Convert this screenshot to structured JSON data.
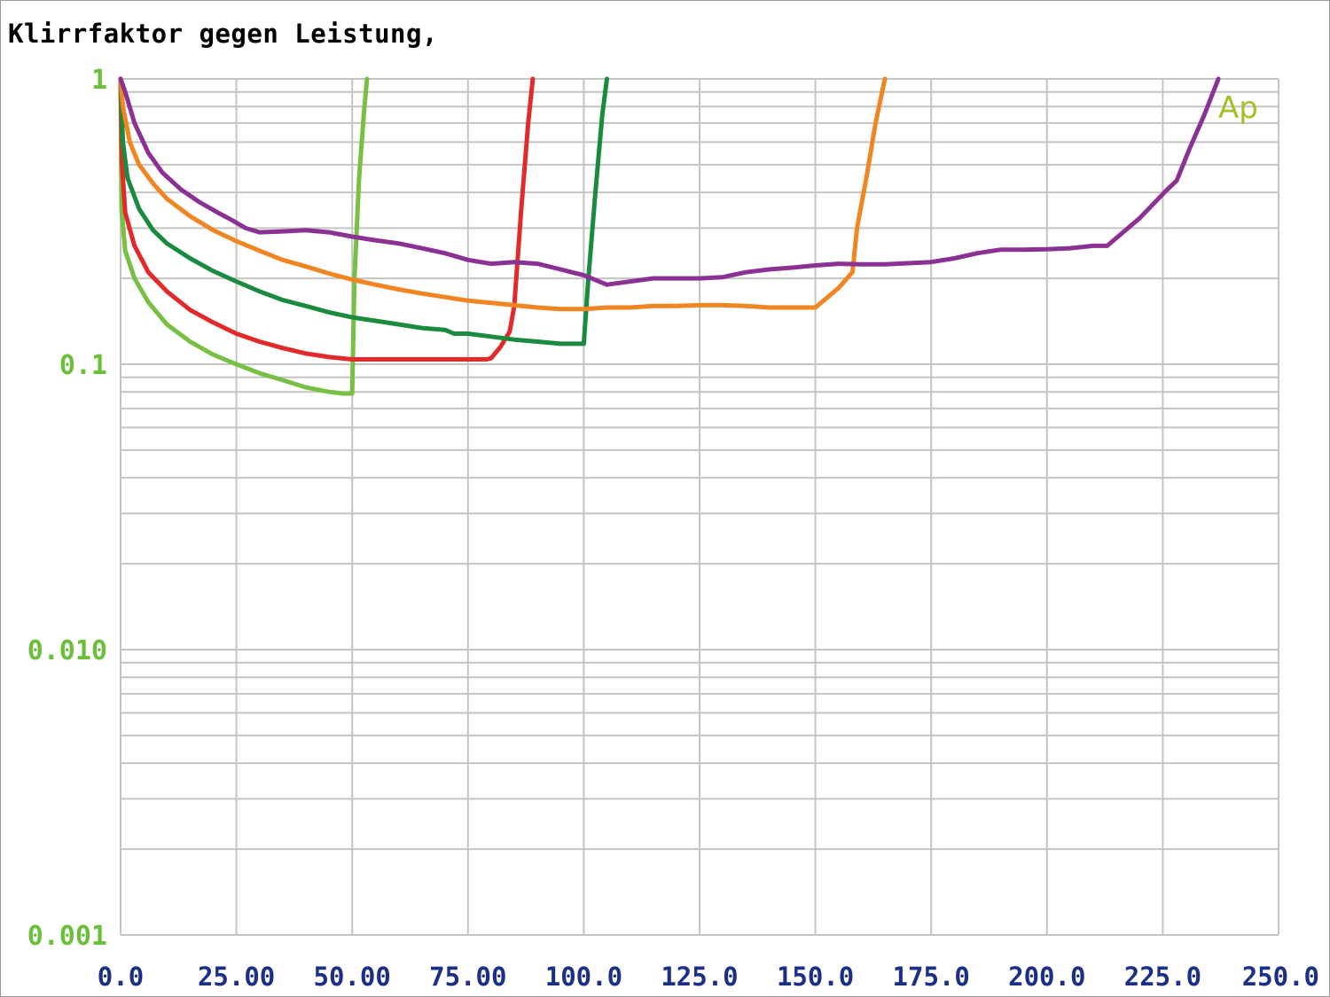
{
  "chart_data": {
    "type": "line",
    "title": "Klirrfaktor gegen Leistung,",
    "logo_text": "Ap",
    "xlabel": "",
    "ylabel": "",
    "xlim": [
      0,
      250
    ],
    "ylim": [
      0.001,
      1
    ],
    "y_scale": "log",
    "grid": true,
    "x_ticks": [
      "0.0",
      "25.00",
      "50.00",
      "75.00",
      "100.0",
      "125.0",
      "150.0",
      "175.0",
      "200.0",
      "225.0",
      "250.0"
    ],
    "y_ticks": [
      {
        "value": 1,
        "label": "1"
      },
      {
        "value": 0.1,
        "label": "0.1"
      },
      {
        "value": 0.01,
        "label": "0.010"
      },
      {
        "value": 0.001,
        "label": "0.001"
      }
    ],
    "colors": {
      "grid": "#c4c4c4",
      "ytick": "#6cbf3a",
      "xtick": "#1c2f87"
    },
    "series": [
      {
        "color": "#77c043",
        "points": [
          [
            0,
            1
          ],
          [
            0.2,
            0.35
          ],
          [
            1,
            0.25
          ],
          [
            3,
            0.2
          ],
          [
            6,
            0.165
          ],
          [
            10,
            0.138
          ],
          [
            15,
            0.12
          ],
          [
            20,
            0.108
          ],
          [
            25,
            0.1
          ],
          [
            30,
            0.093
          ],
          [
            35,
            0.088
          ],
          [
            40,
            0.083
          ],
          [
            45,
            0.08
          ],
          [
            48,
            0.079
          ],
          [
            50,
            0.079
          ],
          [
            50.5,
            0.2
          ],
          [
            51.5,
            0.45
          ],
          [
            52.5,
            0.75
          ],
          [
            53.2,
            1
          ]
        ]
      },
      {
        "color": "#e32a2a",
        "points": [
          [
            0,
            1
          ],
          [
            0.3,
            0.5
          ],
          [
            1,
            0.34
          ],
          [
            3,
            0.26
          ],
          [
            6,
            0.21
          ],
          [
            10,
            0.18
          ],
          [
            15,
            0.155
          ],
          [
            20,
            0.14
          ],
          [
            25,
            0.128
          ],
          [
            30,
            0.12
          ],
          [
            35,
            0.114
          ],
          [
            40,
            0.109
          ],
          [
            45,
            0.106
          ],
          [
            50,
            0.104
          ],
          [
            60,
            0.104
          ],
          [
            70,
            0.104
          ],
          [
            79,
            0.104
          ],
          [
            80,
            0.105
          ],
          [
            82,
            0.115
          ],
          [
            84,
            0.13
          ],
          [
            85,
            0.16
          ],
          [
            86.5,
            0.35
          ],
          [
            88,
            0.7
          ],
          [
            89,
            1
          ]
        ]
      },
      {
        "color": "#1a8a3e",
        "points": [
          [
            0,
            1
          ],
          [
            0.5,
            0.6
          ],
          [
            1.5,
            0.45
          ],
          [
            4,
            0.35
          ],
          [
            7,
            0.295
          ],
          [
            10,
            0.265
          ],
          [
            15,
            0.235
          ],
          [
            20,
            0.212
          ],
          [
            25,
            0.195
          ],
          [
            30,
            0.18
          ],
          [
            35,
            0.168
          ],
          [
            40,
            0.16
          ],
          [
            45,
            0.152
          ],
          [
            50,
            0.146
          ],
          [
            55,
            0.142
          ],
          [
            60,
            0.138
          ],
          [
            65,
            0.134
          ],
          [
            70,
            0.132
          ],
          [
            72,
            0.128
          ],
          [
            75,
            0.128
          ],
          [
            80,
            0.125
          ],
          [
            85,
            0.122
          ],
          [
            90,
            0.12
          ],
          [
            95,
            0.118
          ],
          [
            100,
            0.118
          ],
          [
            101,
            0.2
          ],
          [
            102.5,
            0.4
          ],
          [
            104,
            0.75
          ],
          [
            105,
            1
          ]
        ]
      },
      {
        "color": "#f08522",
        "points": [
          [
            0,
            1
          ],
          [
            0.5,
            0.8
          ],
          [
            2,
            0.6
          ],
          [
            4,
            0.5
          ],
          [
            7,
            0.43
          ],
          [
            10,
            0.38
          ],
          [
            15,
            0.33
          ],
          [
            20,
            0.295
          ],
          [
            25,
            0.27
          ],
          [
            30,
            0.25
          ],
          [
            35,
            0.232
          ],
          [
            40,
            0.22
          ],
          [
            45,
            0.208
          ],
          [
            50,
            0.198
          ],
          [
            55,
            0.19
          ],
          [
            60,
            0.183
          ],
          [
            65,
            0.177
          ],
          [
            70,
            0.172
          ],
          [
            75,
            0.167
          ],
          [
            80,
            0.164
          ],
          [
            85,
            0.161
          ],
          [
            90,
            0.158
          ],
          [
            95,
            0.156
          ],
          [
            100,
            0.156
          ],
          [
            105,
            0.158
          ],
          [
            110,
            0.158
          ],
          [
            115,
            0.16
          ],
          [
            120,
            0.16
          ],
          [
            125,
            0.161
          ],
          [
            130,
            0.161
          ],
          [
            135,
            0.16
          ],
          [
            140,
            0.158
          ],
          [
            150,
            0.158
          ],
          [
            155,
            0.185
          ],
          [
            158,
            0.21
          ],
          [
            159,
            0.3
          ],
          [
            161,
            0.45
          ],
          [
            163,
            0.7
          ],
          [
            165,
            1
          ]
        ]
      },
      {
        "color": "#8a3193",
        "points": [
          [
            0,
            1
          ],
          [
            1,
            0.9
          ],
          [
            3,
            0.7
          ],
          [
            6,
            0.55
          ],
          [
            9,
            0.47
          ],
          [
            13,
            0.41
          ],
          [
            17,
            0.37
          ],
          [
            21,
            0.34
          ],
          [
            24,
            0.32
          ],
          [
            27,
            0.3
          ],
          [
            30,
            0.29
          ],
          [
            35,
            0.292
          ],
          [
            40,
            0.295
          ],
          [
            45,
            0.29
          ],
          [
            50,
            0.28
          ],
          [
            55,
            0.272
          ],
          [
            60,
            0.265
          ],
          [
            65,
            0.255
          ],
          [
            70,
            0.245
          ],
          [
            75,
            0.232
          ],
          [
            80,
            0.225
          ],
          [
            85,
            0.228
          ],
          [
            90,
            0.225
          ],
          [
            95,
            0.215
          ],
          [
            100,
            0.205
          ],
          [
            105,
            0.19
          ],
          [
            110,
            0.195
          ],
          [
            115,
            0.2
          ],
          [
            120,
            0.2
          ],
          [
            125,
            0.2
          ],
          [
            130,
            0.202
          ],
          [
            135,
            0.21
          ],
          [
            140,
            0.215
          ],
          [
            145,
            0.218
          ],
          [
            150,
            0.222
          ],
          [
            155,
            0.225
          ],
          [
            160,
            0.224
          ],
          [
            165,
            0.224
          ],
          [
            170,
            0.226
          ],
          [
            175,
            0.228
          ],
          [
            180,
            0.235
          ],
          [
            185,
            0.245
          ],
          [
            190,
            0.252
          ],
          [
            195,
            0.252
          ],
          [
            200,
            0.253
          ],
          [
            205,
            0.255
          ],
          [
            210,
            0.26
          ],
          [
            213,
            0.26
          ],
          [
            220,
            0.325
          ],
          [
            226,
            0.41
          ],
          [
            228,
            0.44
          ],
          [
            231,
            0.58
          ],
          [
            234,
            0.75
          ],
          [
            237,
            1
          ]
        ]
      }
    ]
  }
}
